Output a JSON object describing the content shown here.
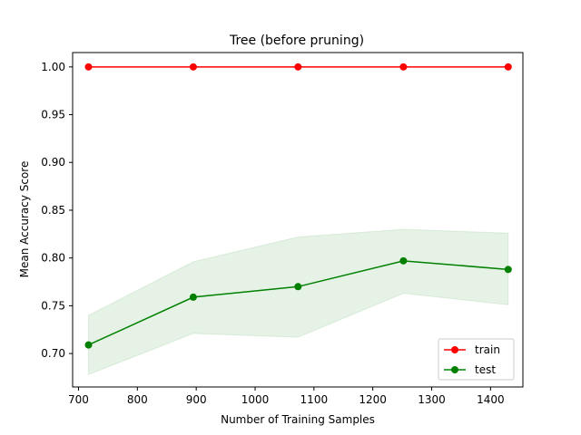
{
  "chart_data": {
    "type": "line",
    "title": "Tree (before pruning)",
    "xlabel": "Number of Training Samples",
    "ylabel": "Mean Accuracy Score",
    "xlim": [
      690,
      1455
    ],
    "ylim": [
      0.665,
      1.015
    ],
    "xticks": [
      700,
      800,
      900,
      1000,
      1100,
      1200,
      1300,
      1400
    ],
    "yticks": [
      0.7,
      0.75,
      0.8,
      0.85,
      0.9,
      0.95,
      1.0
    ],
    "x": [
      717,
      895,
      1073,
      1252,
      1430
    ],
    "grid": false,
    "legend_position": "lower right",
    "series": [
      {
        "name": "train",
        "color": "#ff0000",
        "marker": "circle",
        "values": [
          1.0,
          1.0,
          1.0,
          1.0,
          1.0
        ],
        "band_lower": [
          1.0,
          1.0,
          1.0,
          1.0,
          1.0
        ],
        "band_upper": [
          1.0,
          1.0,
          1.0,
          1.0,
          1.0
        ],
        "band_color": "#ff0000"
      },
      {
        "name": "test",
        "color": "#008000",
        "marker": "circle",
        "values": [
          0.709,
          0.759,
          0.77,
          0.797,
          0.788
        ],
        "band_lower": [
          0.678,
          0.721,
          0.717,
          0.763,
          0.751
        ],
        "band_upper": [
          0.74,
          0.796,
          0.822,
          0.83,
          0.826
        ],
        "band_color": "#008000"
      }
    ]
  }
}
